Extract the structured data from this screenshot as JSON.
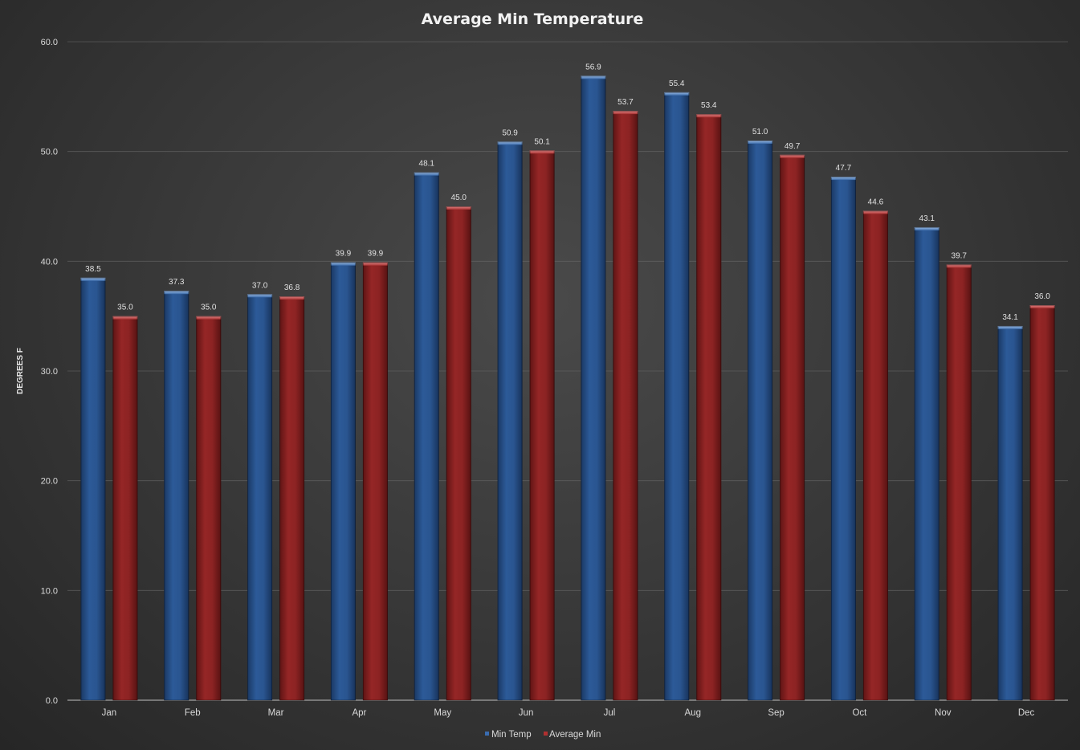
{
  "chart_data": {
    "type": "bar",
    "title": "Average Min Temperature",
    "xlabel": "",
    "ylabel": "DEGREES F",
    "ylim": [
      0,
      60
    ],
    "ytick_step": 10,
    "ytick_labels": [
      "0.0",
      "10.0",
      "20.0",
      "30.0",
      "40.0",
      "50.0",
      "60.0"
    ],
    "grid": true,
    "legend_position": "bottom",
    "categories": [
      "Jan",
      "Feb",
      "Mar",
      "Apr",
      "May",
      "Jun",
      "Jul",
      "Aug",
      "Sep",
      "Oct",
      "Nov",
      "Dec"
    ],
    "series": [
      {
        "name": "Min Temp",
        "color": "#2b5591",
        "values": [
          38.5,
          37.3,
          37.0,
          39.9,
          48.1,
          50.9,
          56.9,
          55.4,
          51.0,
          47.7,
          43.1,
          34.1
        ],
        "labels": [
          "38.5",
          "37.3",
          "37.0",
          "39.9",
          "48.1",
          "50.9",
          "56.9",
          "55.4",
          "51.0",
          "47.7",
          "43.1",
          "34.1"
        ]
      },
      {
        "name": "Average Min",
        "color": "#8e2424",
        "values": [
          35.0,
          35.0,
          36.8,
          39.9,
          45.0,
          50.1,
          53.7,
          53.4,
          49.7,
          44.6,
          39.7,
          36.0
        ],
        "labels": [
          "35.0",
          "35.0",
          "36.8",
          "39.9",
          "45.0",
          "50.1",
          "53.7",
          "53.4",
          "49.7",
          "44.6",
          "39.7",
          "36.0"
        ]
      }
    ]
  }
}
